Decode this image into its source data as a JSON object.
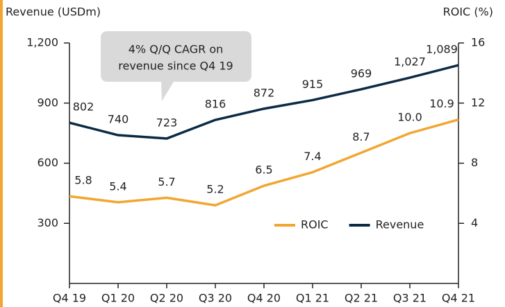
{
  "chart_data": {
    "type": "line",
    "y_label": "Revenue (USDm)",
    "y2_label": "ROIC (%)",
    "annotation": [
      "4% Q/Q CAGR on",
      "revenue since Q4 19"
    ],
    "categories": [
      "Q4 19",
      "Q1 20",
      "Q2 20",
      "Q3 20",
      "Q4 20",
      "Q1 21",
      "Q2 21",
      "Q3 21",
      "Q4 21"
    ],
    "series": [
      {
        "name": "ROIC",
        "color": "#f2a631",
        "axis": "y2",
        "values": [
          5.8,
          5.4,
          5.7,
          5.2,
          6.5,
          7.4,
          8.7,
          10.0,
          10.9
        ],
        "value_labels": [
          "5.8",
          "5.4",
          "5.7",
          "5.2",
          "6.5",
          "7.4",
          "8.7",
          "10.0",
          "10.9"
        ]
      },
      {
        "name": "Revenue",
        "color": "#0c2a44",
        "values": [
          802,
          740,
          723,
          816,
          872,
          915,
          969,
          1027,
          1089
        ],
        "value_labels": [
          "802",
          "740",
          "723",
          "816",
          "872",
          "915",
          "969",
          "1,027",
          "1,089"
        ]
      }
    ],
    "ylim": [
      0,
      1200
    ],
    "yticks": [
      300,
      600,
      900,
      {
        "value": 1200,
        "label": "1,200"
      }
    ],
    "y2lim": [
      0,
      16
    ],
    "y2ticks": [
      4,
      8,
      12,
      16
    ],
    "legend": "lower right"
  }
}
